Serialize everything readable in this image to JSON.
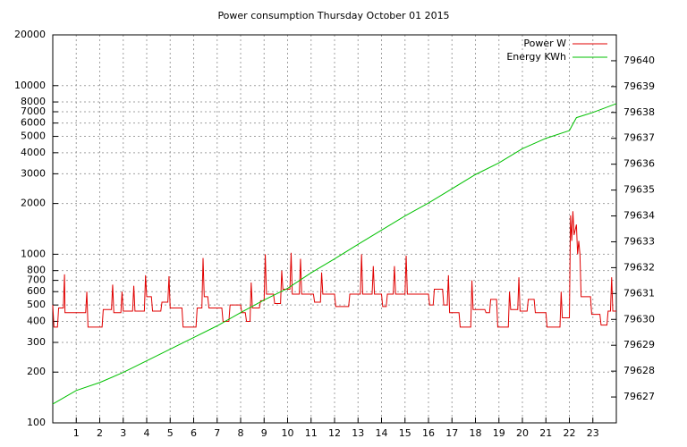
{
  "chart_data": {
    "type": "line",
    "title": "Power consumption Thursday October 01 2015",
    "xlim": [
      0,
      24
    ],
    "xticks": [
      1,
      2,
      3,
      4,
      5,
      6,
      7,
      8,
      9,
      10,
      11,
      12,
      13,
      14,
      15,
      16,
      17,
      18,
      19,
      20,
      21,
      22,
      23
    ],
    "ylim": [
      100,
      20000
    ],
    "yscale": "log",
    "yticks": [
      100,
      200,
      300,
      400,
      500,
      600,
      700,
      800,
      1000,
      2000,
      3000,
      4000,
      5000,
      6000,
      7000,
      8000,
      10000,
      20000
    ],
    "y2lim": [
      79626,
      79641
    ],
    "y2ticks": [
      79627,
      79628,
      79629,
      79630,
      79631,
      79632,
      79633,
      79634,
      79635,
      79636,
      79637,
      79638,
      79639,
      79640
    ],
    "grid": true,
    "legend": "top-right",
    "series": [
      {
        "name": "Power W",
        "color": "#e00000",
        "x": [
          0,
          0.05,
          0.2,
          0.25,
          0.45,
          0.5,
          0.52,
          1.4,
          1.45,
          1.5,
          2.1,
          2.15,
          2.5,
          2.55,
          2.6,
          2.9,
          2.95,
          3.0,
          3.4,
          3.45,
          3.5,
          3.9,
          3.95,
          4.0,
          4.2,
          4.25,
          4.6,
          4.65,
          4.9,
          4.95,
          5.0,
          5.5,
          5.55,
          6.1,
          6.15,
          6.35,
          6.4,
          6.45,
          6.6,
          6.65,
          7.2,
          7.25,
          7.5,
          7.55,
          8.0,
          8.05,
          8.2,
          8.25,
          8.4,
          8.45,
          8.5,
          8.8,
          8.85,
          9.0,
          9.05,
          9.1,
          9.4,
          9.45,
          9.7,
          9.75,
          9.8,
          10.1,
          10.15,
          10.2,
          10.5,
          10.55,
          10.6,
          11.1,
          11.15,
          11.4,
          11.45,
          11.5,
          12.0,
          12.05,
          12.6,
          12.65,
          13.1,
          13.15,
          13.2,
          13.6,
          13.65,
          13.7,
          14.0,
          14.05,
          14.2,
          14.25,
          14.5,
          14.55,
          14.6,
          15.0,
          15.05,
          15.1,
          16.0,
          16.05,
          16.2,
          16.25,
          16.6,
          16.65,
          16.8,
          16.85,
          16.9,
          17.3,
          17.35,
          17.8,
          17.85,
          17.9,
          18.4,
          18.45,
          18.6,
          18.65,
          18.9,
          18.95,
          19.4,
          19.45,
          19.5,
          19.8,
          19.85,
          19.9,
          20.2,
          20.25,
          20.5,
          20.55,
          21.0,
          21.05,
          21.6,
          21.65,
          21.7,
          22.0,
          22.05,
          22.1,
          22.15,
          22.2,
          22.3,
          22.35,
          22.4,
          22.45,
          22.5,
          22.9,
          22.95,
          23.3,
          23.35,
          23.6,
          23.65,
          23.75,
          23.8,
          23.85,
          24
        ],
        "values": [
          500,
          370,
          370,
          480,
          480,
          760,
          450,
          450,
          600,
          370,
          370,
          470,
          470,
          660,
          450,
          450,
          600,
          460,
          460,
          650,
          460,
          460,
          750,
          560,
          560,
          460,
          460,
          520,
          520,
          740,
          480,
          480,
          370,
          370,
          480,
          480,
          950,
          560,
          560,
          480,
          480,
          400,
          400,
          500,
          500,
          450,
          450,
          400,
          400,
          680,
          480,
          480,
          530,
          530,
          1000,
          580,
          580,
          510,
          510,
          800,
          620,
          620,
          1020,
          580,
          580,
          940,
          580,
          580,
          520,
          520,
          780,
          580,
          580,
          490,
          490,
          580,
          580,
          1000,
          580,
          580,
          850,
          580,
          580,
          490,
          490,
          580,
          580,
          850,
          580,
          580,
          980,
          580,
          580,
          500,
          500,
          620,
          620,
          500,
          500,
          750,
          450,
          450,
          370,
          370,
          700,
          470,
          470,
          450,
          450,
          540,
          540,
          370,
          370,
          600,
          470,
          470,
          730,
          460,
          460,
          540,
          540,
          450,
          450,
          370,
          370,
          600,
          420,
          420,
          1700,
          1200,
          1800,
          1300,
          1500,
          1000,
          1200,
          1000,
          560,
          560,
          440,
          440,
          380,
          380,
          460,
          460,
          730,
          460,
          460
        ]
      },
      {
        "name": "Energy KWh",
        "color": "#00c000",
        "axis": "y2",
        "x": [
          0,
          1,
          2,
          3,
          4,
          5,
          6,
          7,
          8,
          9,
          10,
          11,
          12,
          13,
          14,
          15,
          16,
          17,
          18,
          19,
          20,
          21,
          22,
          22.3,
          23,
          24
        ],
        "values": [
          79626.73,
          79627.25,
          79627.56,
          79627.95,
          79628.4,
          79628.85,
          79629.3,
          79629.75,
          79630.26,
          79630.75,
          79631.2,
          79631.8,
          79632.34,
          79632.9,
          79633.45,
          79634.0,
          79634.5,
          79635.05,
          79635.6,
          79636.05,
          79636.6,
          79637.0,
          79637.3,
          79637.8,
          79638.0,
          79638.34
        ]
      }
    ]
  }
}
